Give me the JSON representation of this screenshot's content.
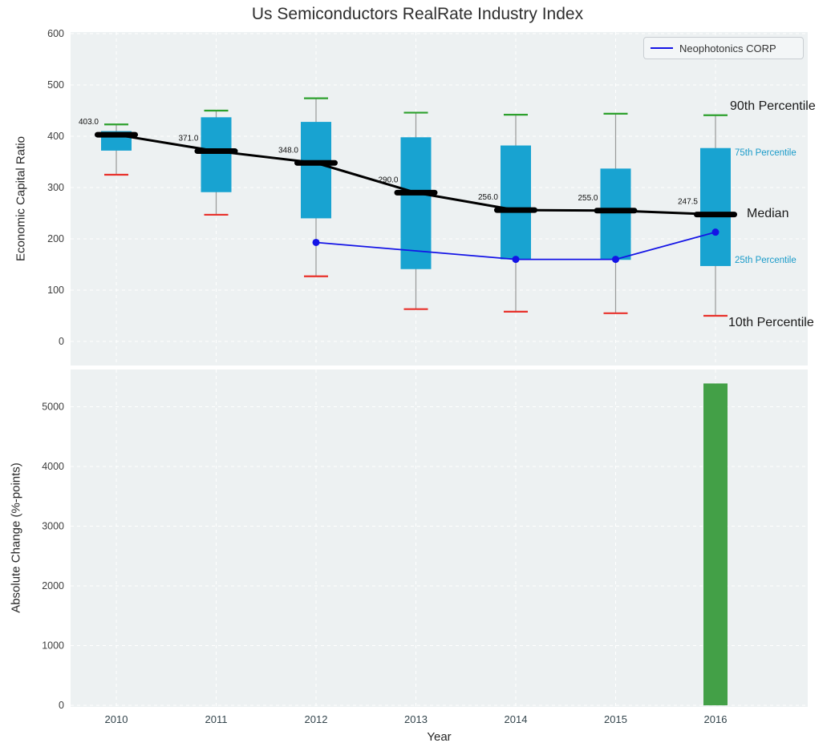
{
  "title": "Us Semiconductors RealRate Industry Index",
  "axes": {
    "top_ylabel": "Economic Capital Ratio",
    "bottom_ylabel": "Absolute Change (%-points)",
    "xlabel": "Year"
  },
  "legend": {
    "label": "Neophotonics CORP"
  },
  "annotations": {
    "p90": "90th Percentile",
    "p75": "75th Percentile",
    "median": "Median",
    "p25": "25th Percentile",
    "p10": "10th Percentile"
  },
  "colors": {
    "plot_bg": "#edf1f2",
    "grid": "#ffffff",
    "box": "#18a3d1",
    "p90_cap": "#2ca02c",
    "p10_cap": "#e8302a",
    "whisker": "#999999",
    "median": "#000000",
    "company_line": "#1414e6",
    "bar": "#43a047",
    "annotation_cyan": "#1a9bc9"
  },
  "chart_data": [
    {
      "type": "box-percentile",
      "title": "Us Semiconductors RealRate Industry Index",
      "ylabel": "Economic Capital Ratio",
      "ylim": [
        0,
        600
      ],
      "yticks": [
        0,
        100,
        200,
        300,
        400,
        500,
        600
      ],
      "grid": true,
      "legend_position": "upper right",
      "categories": [
        2010,
        2011,
        2012,
        2013,
        2014,
        2015,
        2016
      ],
      "series": {
        "p90": [
          423,
          450,
          474,
          446,
          442,
          444,
          441
        ],
        "p75": [
          410,
          437,
          428,
          398,
          382,
          337,
          377
        ],
        "median": [
          403,
          371,
          348,
          290,
          256,
          255,
          247.5
        ],
        "p25": [
          372,
          291,
          240,
          141,
          160,
          159,
          147
        ],
        "p10": [
          325,
          247,
          127,
          63,
          58,
          55,
          50
        ]
      },
      "median_labels": [
        "403.0",
        "371.0",
        "348.0",
        "290.0",
        "256.0",
        "255.0",
        "247.5"
      ],
      "company": {
        "name": "Neophotonics CORP",
        "x": [
          2012,
          2014,
          2015,
          2016
        ],
        "y": [
          193,
          160,
          160,
          213
        ]
      }
    },
    {
      "type": "bar",
      "ylabel": "Absolute Change (%-points)",
      "xlabel": "Year",
      "ylim": [
        0,
        5650
      ],
      "yticks": [
        0,
        1000,
        2000,
        3000,
        4000,
        5000
      ],
      "grid": true,
      "categories": [
        2010,
        2011,
        2012,
        2013,
        2014,
        2015,
        2016
      ],
      "values": [
        0,
        0,
        0,
        0,
        0,
        0,
        5390
      ]
    }
  ]
}
